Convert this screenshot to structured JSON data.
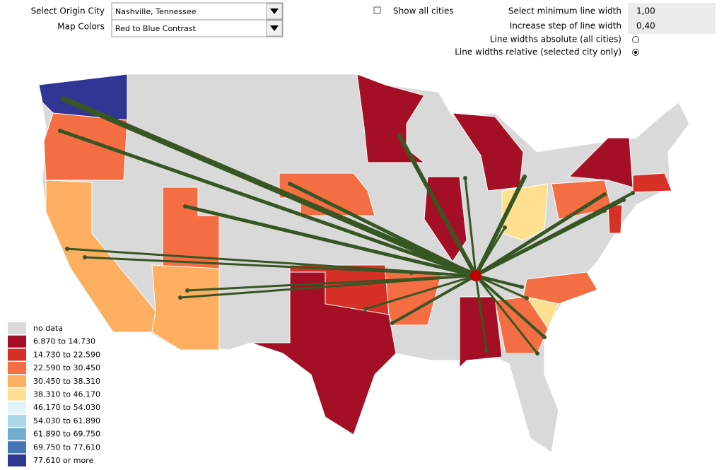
{
  "controls": {
    "origin_city": {
      "label": "Select Origin City",
      "value": "Nashville, Tennessee"
    },
    "map_colors": {
      "label": "Map Colors",
      "value": "Red to Blue Contrast"
    },
    "show_all_cities": {
      "label": "Show all cities",
      "checked": false
    },
    "min_line_width": {
      "label": "Select minimum line width",
      "value": "1,00"
    },
    "step_line_width": {
      "label": "Increase step of line width",
      "value": "0,40"
    },
    "line_width_mode": {
      "options": [
        "Line widths absolute (all cities)",
        "Line widths relative (selected city only)"
      ],
      "selected": 1
    }
  },
  "legend": {
    "items": [
      {
        "label": "no data",
        "color": "#d9d9d9"
      },
      {
        "label": "6.870 to 14.730",
        "color": "#a50f25"
      },
      {
        "label": "14.730 to 22.590",
        "color": "#d73027"
      },
      {
        "label": "22.590 to 30.450",
        "color": "#f46d43"
      },
      {
        "label": "30.450 to 38.310",
        "color": "#fdae61"
      },
      {
        "label": "38.310 to 46.170",
        "color": "#fee090"
      },
      {
        "label": "46.170 to 54.030",
        "color": "#e0f3f8"
      },
      {
        "label": "54.030 to 61.890",
        "color": "#abd9e9"
      },
      {
        "label": "61.890 to 69.750",
        "color": "#74add1"
      },
      {
        "label": "69.750 to 77.610",
        "color": "#4575b4"
      },
      {
        "label": "77.610 or more",
        "color": "#313695"
      }
    ]
  }
}
